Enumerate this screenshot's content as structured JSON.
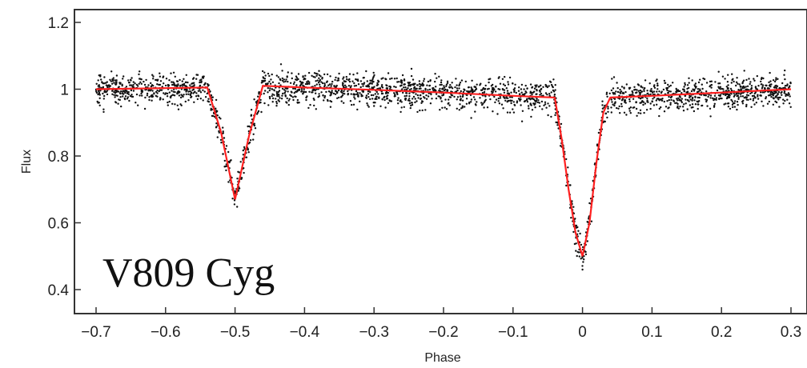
{
  "chart_data": {
    "type": "scatter",
    "xlabel": "Phase",
    "ylabel": "Flux",
    "xlim": [
      -0.7,
      0.3
    ],
    "ylim": [
      0.3,
      1.24
    ],
    "xticks": [
      -0.7,
      -0.6,
      -0.5,
      -0.4,
      -0.3,
      -0.2,
      -0.1,
      0,
      0.1,
      0.2,
      0.3
    ],
    "xtick_labels": [
      "−0.7",
      "−0.6",
      "−0.5",
      "−0.4",
      "−0.3",
      "−0.2",
      "−0.1",
      "0",
      "0.1",
      "0.2",
      "0.3"
    ],
    "yticks": [
      0.4,
      0.6,
      0.8,
      1.0,
      1.2
    ],
    "ytick_labels": [
      "0.4",
      "0.6",
      "0.8",
      "1",
      "1.2"
    ],
    "annotation": "V809 Cyg",
    "grid": false,
    "colors": {
      "points": "#111111",
      "model": "#ff2020",
      "axes": "#333333"
    },
    "model_curve": {
      "x": [
        -0.7,
        -0.54,
        -0.52,
        -0.5,
        -0.48,
        -0.46,
        -0.4,
        -0.3,
        -0.2,
        -0.1,
        -0.04,
        -0.03,
        -0.02,
        -0.01,
        0.0,
        0.01,
        0.02,
        0.03,
        0.04,
        0.1,
        0.2,
        0.3
      ],
      "y": [
        1.0,
        1.005,
        0.87,
        0.67,
        0.86,
        1.01,
        1.005,
        0.998,
        0.99,
        0.98,
        0.975,
        0.85,
        0.7,
        0.57,
        0.5,
        0.6,
        0.78,
        0.93,
        0.975,
        0.98,
        0.99,
        1.0
      ]
    },
    "observations": {
      "phase_range": [
        -0.7,
        0.3
      ],
      "scatter_sigma": 0.04,
      "approx_count": 2600
    }
  }
}
